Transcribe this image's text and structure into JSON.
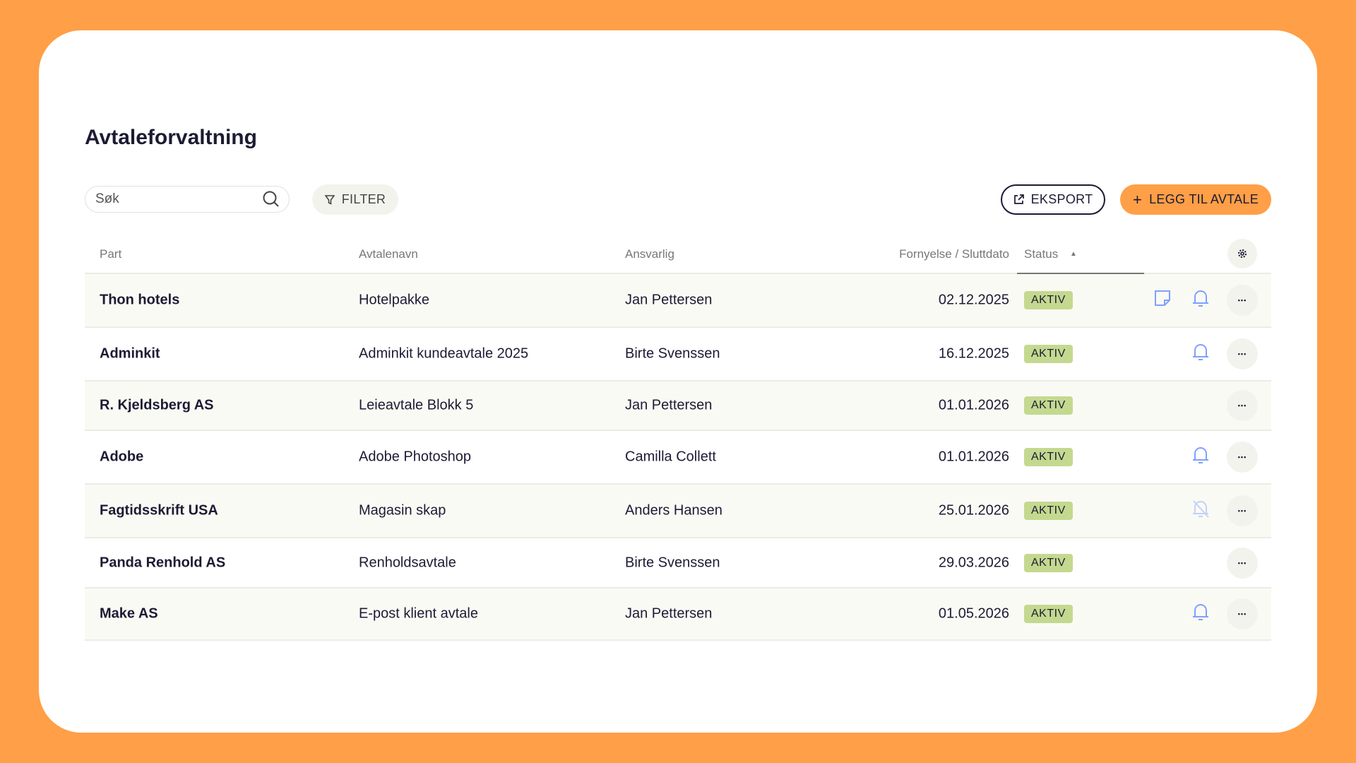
{
  "page": {
    "title": "Avtaleforvaltning"
  },
  "toolbar": {
    "search_placeholder": "Søk",
    "filter_label": "FILTER",
    "export_label": "EKSPORT",
    "add_label": "LEGG TIL AVTALE",
    "add_icon": "+"
  },
  "colors": {
    "background": "#ff9f47",
    "accent": "#ff9f47",
    "badge": "#c4d98f",
    "icon": "#7fa0ff"
  },
  "table": {
    "columns": [
      "Part",
      "Avtalenavn",
      "Ansvarlig",
      "Fornyelse / Sluttdato",
      "Status"
    ],
    "sort": {
      "column": "Status",
      "direction": "ascending"
    },
    "rows": [
      {
        "party": "Thon hotels",
        "name": "Hotelpakke",
        "responsible": "Jan Pettersen",
        "date": "02.12.2025",
        "status": "AKTIV",
        "note": true,
        "bell": "on"
      },
      {
        "party": "Adminkit",
        "name": "Adminkit kundeavtale 2025",
        "responsible": "Birte Svenssen",
        "date": "16.12.2025",
        "status": "AKTIV",
        "note": false,
        "bell": "on"
      },
      {
        "party": "R. Kjeldsberg AS",
        "name": "Leieavtale Blokk 5",
        "responsible": "Jan Pettersen",
        "date": "01.01.2026",
        "status": "AKTIV",
        "note": false,
        "bell": "none"
      },
      {
        "party": "Adobe",
        "name": "Adobe Photoshop",
        "responsible": "Camilla Collett",
        "date": "01.01.2026",
        "status": "AKTIV",
        "note": false,
        "bell": "on"
      },
      {
        "party": "Fagtidsskrift USA",
        "name": "Magasin skap",
        "responsible": "Anders Hansen",
        "date": "25.01.2026",
        "status": "AKTIV",
        "note": false,
        "bell": "off"
      },
      {
        "party": "Panda Renhold AS",
        "name": "Renholdsavtale",
        "responsible": "Birte Svenssen",
        "date": "29.03.2026",
        "status": "AKTIV",
        "note": false,
        "bell": "none"
      },
      {
        "party": "Make AS",
        "name": "E-post klient avtale",
        "responsible": "Jan Pettersen",
        "date": "01.05.2026",
        "status": "AKTIV",
        "note": false,
        "bell": "on"
      }
    ]
  }
}
